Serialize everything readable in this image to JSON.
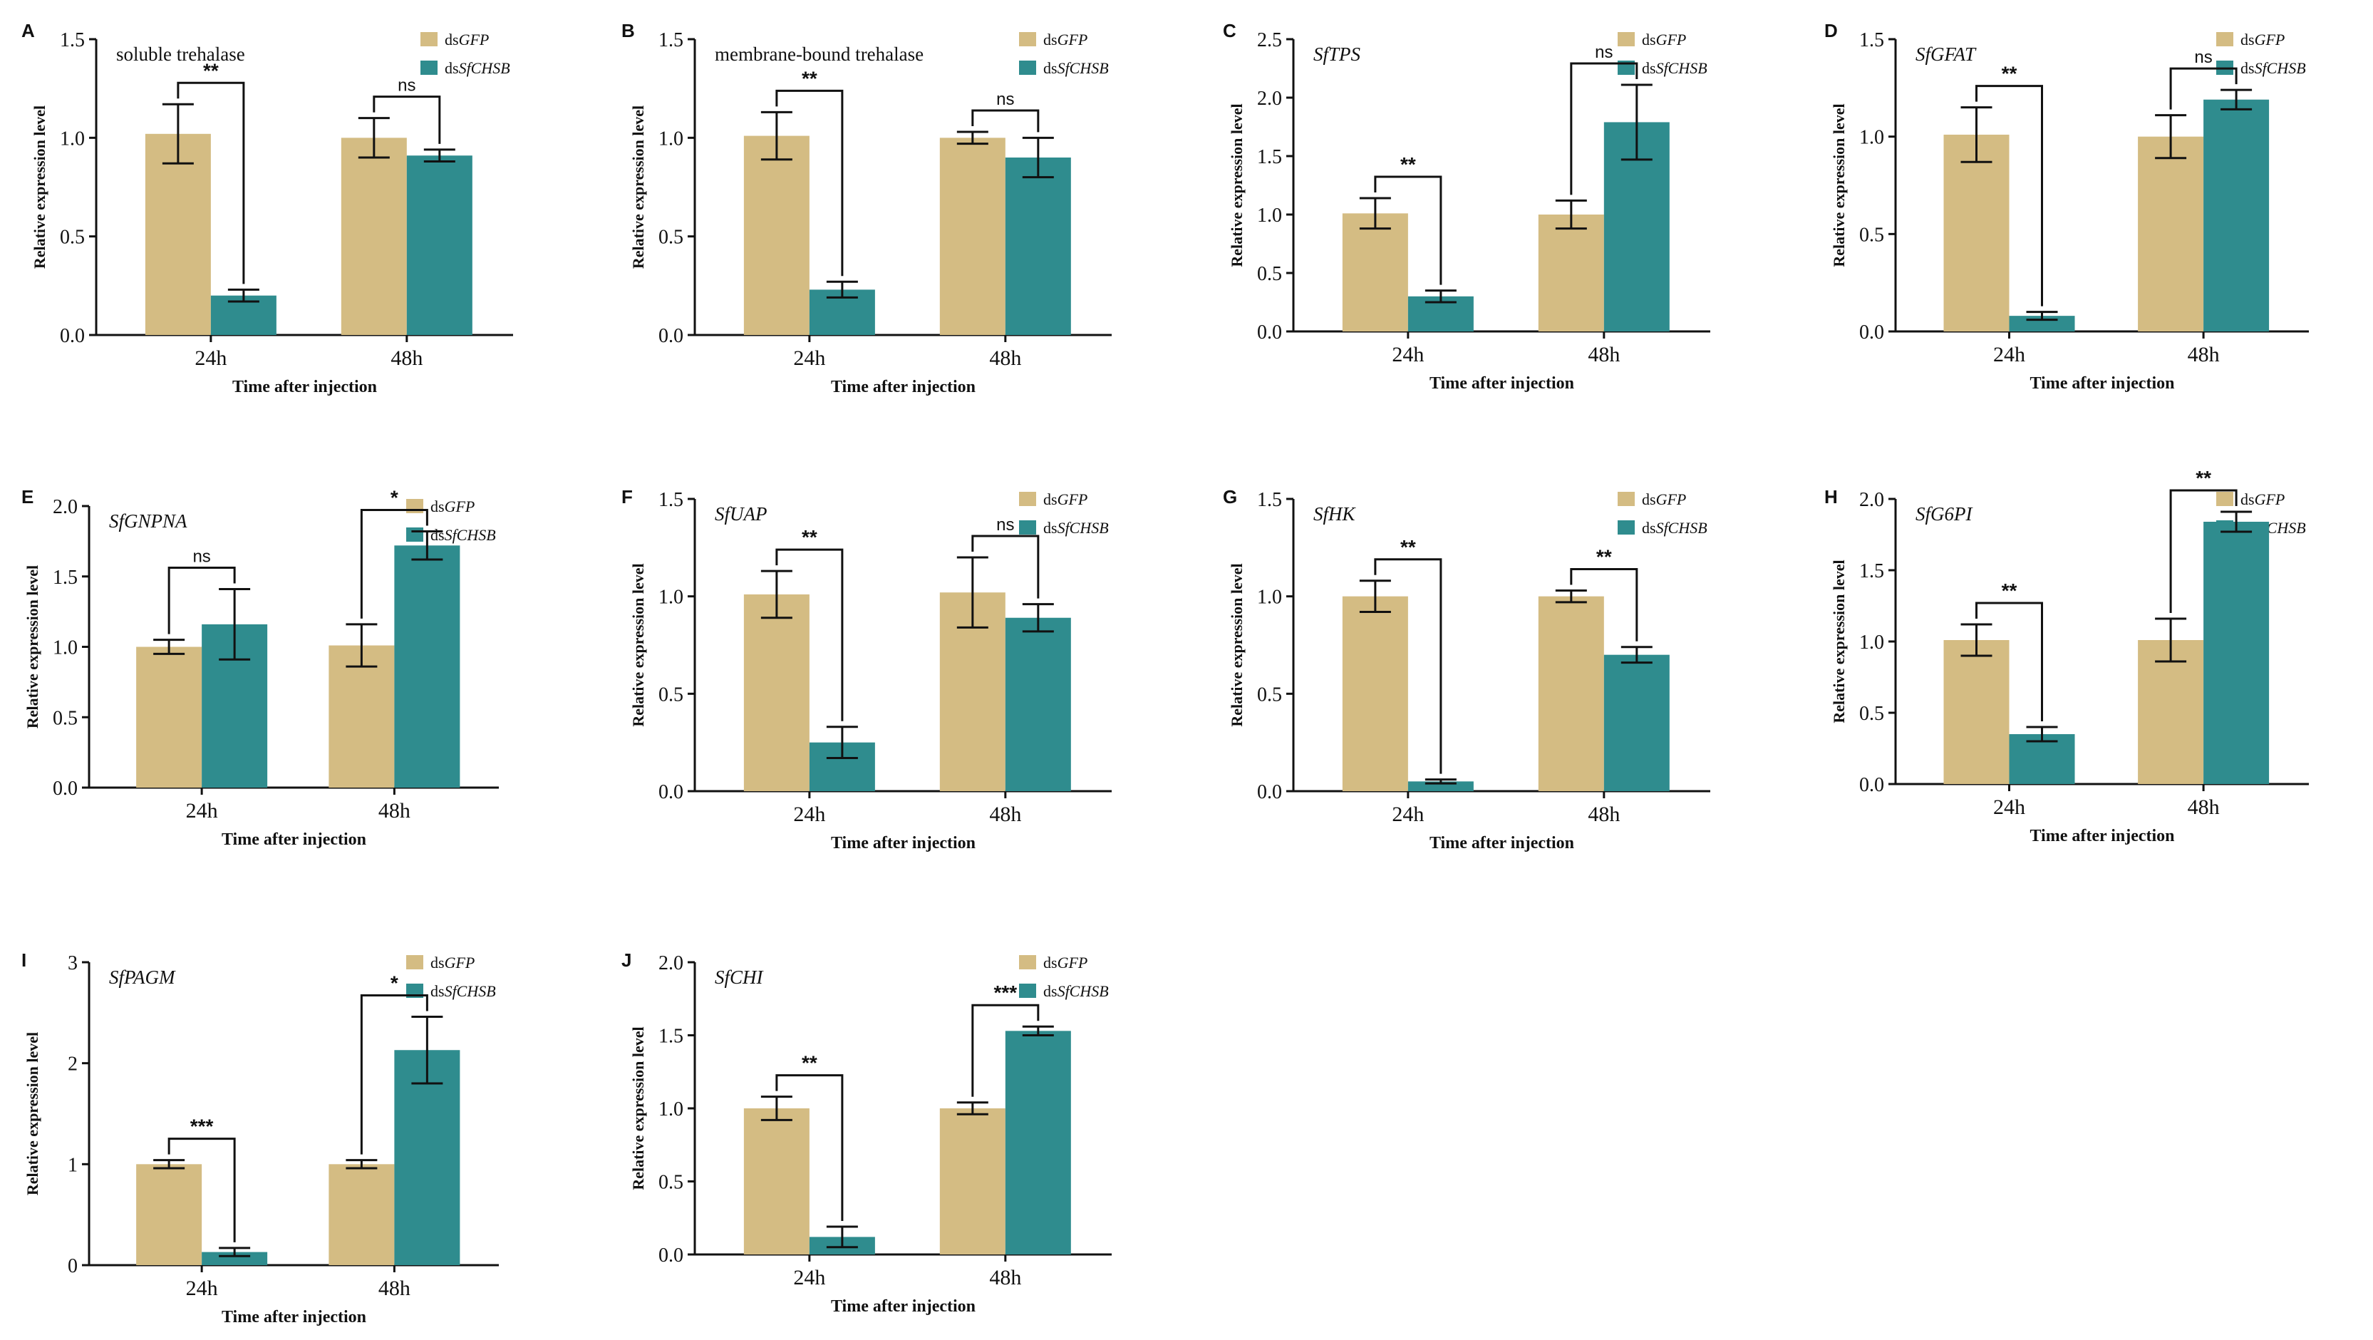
{
  "colors": {
    "dsGFP": "#d4bc83",
    "dsSfCHSB": "#2f8c8e"
  },
  "legend": [
    {
      "prefix": "ds",
      "name": "GFP"
    },
    {
      "prefix": "ds",
      "name": "SfCHSB"
    }
  ],
  "chart_data": [
    {
      "panel": "A",
      "type": "bar",
      "title": "soluble trehalase",
      "title_italic": false,
      "categories": [
        "24h",
        "48h"
      ],
      "xlabel": "Time after injection",
      "ylabel": "Relative expression level",
      "ylim": [
        0,
        1.5
      ],
      "yticks": [
        "0.0",
        "0.5",
        "1.0",
        "1.5"
      ],
      "series": [
        {
          "name": "dsGFP",
          "values": [
            1.02,
            1.0
          ],
          "errors": [
            0.15,
            0.1
          ]
        },
        {
          "name": "dsSfCHSB",
          "values": [
            0.2,
            0.91
          ],
          "errors": [
            0.03,
            0.03
          ]
        }
      ],
      "significance": [
        "**",
        "ns"
      ]
    },
    {
      "panel": "B",
      "type": "bar",
      "title": "membrane-bound trehalase",
      "title_italic": false,
      "categories": [
        "24h",
        "48h"
      ],
      "xlabel": "Time after injection",
      "ylabel": "Relative expression level",
      "ylim": [
        0,
        1.5
      ],
      "yticks": [
        "0.0",
        "0.5",
        "1.0",
        "1.5"
      ],
      "series": [
        {
          "name": "dsGFP",
          "values": [
            1.01,
            1.0
          ],
          "errors": [
            0.12,
            0.03
          ]
        },
        {
          "name": "dsSfCHSB",
          "values": [
            0.23,
            0.9
          ],
          "errors": [
            0.04,
            0.1
          ]
        }
      ],
      "significance": [
        "**",
        "ns"
      ]
    },
    {
      "panel": "C",
      "type": "bar",
      "title": "SfTPS",
      "title_italic": true,
      "categories": [
        "24h",
        "48h"
      ],
      "xlabel": "Time after injection",
      "ylabel": "Relative expression level",
      "ylim": [
        0,
        2.5
      ],
      "yticks": [
        "0.0",
        "0.5",
        "1.0",
        "1.5",
        "2.0",
        "2.5"
      ],
      "series": [
        {
          "name": "dsGFP",
          "values": [
            1.01,
            1.0
          ],
          "errors": [
            0.13,
            0.12
          ]
        },
        {
          "name": "dsSfCHSB",
          "values": [
            0.3,
            1.79
          ],
          "errors": [
            0.05,
            0.32
          ]
        }
      ],
      "significance": [
        "**",
        "ns"
      ]
    },
    {
      "panel": "D",
      "type": "bar",
      "title": "SfGFAT",
      "title_italic": true,
      "categories": [
        "24h",
        "48h"
      ],
      "xlabel": "Time after injection",
      "ylabel": "Relative expression level",
      "ylim": [
        0,
        1.5
      ],
      "yticks": [
        "0.0",
        "0.5",
        "1.0",
        "1.5"
      ],
      "series": [
        {
          "name": "dsGFP",
          "values": [
            1.01,
            1.0
          ],
          "errors": [
            0.14,
            0.11
          ]
        },
        {
          "name": "dsSfCHSB",
          "values": [
            0.08,
            1.19
          ],
          "errors": [
            0.02,
            0.05
          ]
        }
      ],
      "significance": [
        "**",
        "ns"
      ]
    },
    {
      "panel": "E",
      "type": "bar",
      "title": "SfGNPNA",
      "title_italic": true,
      "categories": [
        "24h",
        "48h"
      ],
      "xlabel": "Time after injection",
      "ylabel": "Relative expression level",
      "ylim": [
        0,
        2.0
      ],
      "yticks": [
        "0.0",
        "0.5",
        "1.0",
        "1.5",
        "2.0"
      ],
      "series": [
        {
          "name": "dsGFP",
          "values": [
            1.0,
            1.01
          ],
          "errors": [
            0.05,
            0.15
          ]
        },
        {
          "name": "dsSfCHSB",
          "values": [
            1.16,
            1.72
          ],
          "errors": [
            0.25,
            0.1
          ]
        }
      ],
      "significance": [
        "ns",
        "*"
      ]
    },
    {
      "panel": "F",
      "type": "bar",
      "title": "SfUAP",
      "title_italic": true,
      "categories": [
        "24h",
        "48h"
      ],
      "xlabel": "Time after injection",
      "ylabel": "Relative expression level",
      "ylim": [
        0,
        1.5
      ],
      "yticks": [
        "0.0",
        "0.5",
        "1.0",
        "1.5"
      ],
      "series": [
        {
          "name": "dsGFP",
          "values": [
            1.01,
            1.02
          ],
          "errors": [
            0.12,
            0.18
          ]
        },
        {
          "name": "dsSfCHSB",
          "values": [
            0.25,
            0.89
          ],
          "errors": [
            0.08,
            0.07
          ]
        }
      ],
      "significance": [
        "**",
        "ns"
      ]
    },
    {
      "panel": "G",
      "type": "bar",
      "title": "SfHK",
      "title_italic": true,
      "categories": [
        "24h",
        "48h"
      ],
      "xlabel": "Time after injection",
      "ylabel": "Relative expression level",
      "ylim": [
        0,
        1.5
      ],
      "yticks": [
        "0.0",
        "0.5",
        "1.0",
        "1.5"
      ],
      "series": [
        {
          "name": "dsGFP",
          "values": [
            1.0,
            1.0
          ],
          "errors": [
            0.08,
            0.03
          ]
        },
        {
          "name": "dsSfCHSB",
          "values": [
            0.05,
            0.7
          ],
          "errors": [
            0.01,
            0.04
          ]
        }
      ],
      "significance": [
        "**",
        "**"
      ]
    },
    {
      "panel": "H",
      "type": "bar",
      "title": "SfG6PI",
      "title_italic": true,
      "categories": [
        "24h",
        "48h"
      ],
      "xlabel": "Time after injection",
      "ylabel": "Relative expression level",
      "ylim": [
        0,
        2.0
      ],
      "yticks": [
        "0.0",
        "0.5",
        "1.0",
        "1.5",
        "2.0"
      ],
      "series": [
        {
          "name": "dsGFP",
          "values": [
            1.01,
            1.01
          ],
          "errors": [
            0.11,
            0.15
          ]
        },
        {
          "name": "dsSfCHSB",
          "values": [
            0.35,
            1.84
          ],
          "errors": [
            0.05,
            0.07
          ]
        }
      ],
      "significance": [
        "**",
        "**"
      ]
    },
    {
      "panel": "I",
      "type": "bar",
      "title": "SfPAGM",
      "title_italic": true,
      "categories": [
        "24h",
        "48h"
      ],
      "xlabel": "Time after injection",
      "ylabel": "Relative expression level",
      "ylim": [
        0,
        3
      ],
      "yticks": [
        "0",
        "1",
        "2",
        "3"
      ],
      "series": [
        {
          "name": "dsGFP",
          "values": [
            1.0,
            1.0
          ],
          "errors": [
            0.04,
            0.04
          ]
        },
        {
          "name": "dsSfCHSB",
          "values": [
            0.13,
            2.13
          ],
          "errors": [
            0.04,
            0.33
          ]
        }
      ],
      "significance": [
        "***",
        "*"
      ]
    },
    {
      "panel": "J",
      "type": "bar",
      "title": "SfCHI",
      "title_italic": true,
      "categories": [
        "24h",
        "48h"
      ],
      "xlabel": "Time after injection",
      "ylabel": "Relative expression level",
      "ylim": [
        0,
        2.0
      ],
      "yticks": [
        "0.0",
        "0.5",
        "1.0",
        "1.5",
        "2.0"
      ],
      "series": [
        {
          "name": "dsGFP",
          "values": [
            1.0,
            1.0
          ],
          "errors": [
            0.08,
            0.04
          ]
        },
        {
          "name": "dsSfCHSB",
          "values": [
            0.12,
            1.53
          ],
          "errors": [
            0.07,
            0.03
          ]
        }
      ],
      "significance": [
        "**",
        "***"
      ]
    }
  ]
}
